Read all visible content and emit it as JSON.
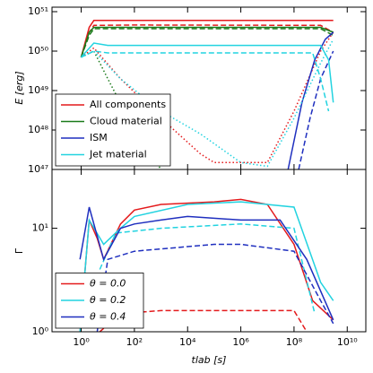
{
  "chart_data": [
    {
      "type": "line",
      "ylabel": "E [erg]",
      "log_x": true,
      "log_y": true,
      "xlim": [
        0.08,
        50000000000
      ],
      "ylim": [
        1e+47,
        1.3e+51
      ],
      "yticks": [
        {
          "value": 1e+47,
          "label": "10⁴⁷"
        },
        {
          "value": 1e+48,
          "label": "10⁴⁸"
        },
        {
          "value": 1e+49,
          "label": "10⁴⁹"
        },
        {
          "value": 1e+50,
          "label": "10⁵⁰"
        },
        {
          "value": 1e+51,
          "label": "10⁵¹"
        }
      ],
      "legend": "lower left",
      "series": [
        {
          "name": "All components",
          "color": "#e41a1c",
          "lines": [
            {
              "style": "solid",
              "x": [
                1,
                2,
                3,
                1000000000,
                3000000000
              ],
              "values": [
                7e+49,
                4e+50,
                6e+50,
                6e+50,
                6e+50
              ]
            },
            {
              "style": "dashed",
              "x": [
                1,
                2,
                3,
                100,
                1000000000,
                3000000000
              ],
              "values": [
                7e+49,
                3e+50,
                4.5e+50,
                4.6e+50,
                4.5e+50,
                3e+50
              ]
            },
            {
              "style": "dotted",
              "x": [
                1,
                3,
                30,
                1000,
                30000,
                100000,
                10000000,
                100000000,
                1000000000,
                3000000000
              ],
              "values": [
                7e+49,
                1.2e+50,
                2e+49,
                2e+48,
                2.5e+47,
                1.5e+47,
                1.5e+47,
                3e+48,
                1e+50,
                3e+50
              ]
            }
          ]
        },
        {
          "name": "Cloud material",
          "color": "#1a7a1a",
          "lines": [
            {
              "style": "solid",
              "x": [
                1,
                2,
                3,
                1000000000,
                3000000000
              ],
              "values": [
                7e+49,
                3e+50,
                4e+50,
                4e+50,
                3e+50
              ]
            },
            {
              "style": "dashed",
              "x": [
                1,
                2,
                3,
                1000000000,
                3000000000
              ],
              "values": [
                7e+49,
                2.5e+50,
                3.7e+50,
                3.7e+50,
                2.5e+50
              ]
            },
            {
              "style": "dotted",
              "x": [
                1,
                3,
                10,
                100,
                1000,
                3000
              ],
              "values": [
                7e+49,
                1e+50,
                2e+49,
                1e+48,
                1e+47,
                5e+46
              ]
            }
          ]
        },
        {
          "name": "ISM",
          "color": "#1f2fbf",
          "lines": [
            {
              "style": "solid",
              "x": [
                60000000,
                200000000,
                600000000,
                1500000000,
                3000000000
              ],
              "values": [
                1e+47,
                5e+48,
                6e+49,
                2e+50,
                3e+50
              ]
            },
            {
              "style": "dashed",
              "x": [
                150000000,
                400000000,
                1000000000,
                3000000000
              ],
              "values": [
                1e+47,
                2e+48,
                2e+49,
                1e+50
              ]
            }
          ]
        },
        {
          "name": "Jet material",
          "color": "#22d3e0",
          "lines": [
            {
              "style": "solid",
              "x": [
                1,
                3,
                10,
                1000000000,
                2000000000,
                3000000000
              ],
              "values": [
                7e+49,
                1.6e+50,
                1.4e+50,
                1.4e+50,
                6e+49,
                5e+48
              ]
            },
            {
              "style": "dashed",
              "x": [
                1,
                3,
                10,
                500000000,
                1000000000,
                2000000000
              ],
              "values": [
                7e+49,
                1e+50,
                9e+49,
                9e+49,
                2e+49,
                3e+48
              ]
            },
            {
              "style": "dotted",
              "x": [
                1,
                3,
                30,
                1000,
                30000,
                1000000,
                10000000,
                100000000,
                1000000000,
                3000000000
              ],
              "values": [
                7e+49,
                1e+50,
                2e+49,
                3e+48,
                8e+47,
                1.5e+47,
                1.2e+47,
                2e+48,
                5e+49,
                2e+50
              ]
            }
          ]
        }
      ]
    },
    {
      "type": "line",
      "ylabel": "Γ",
      "xlabel": "tlab [s]",
      "log_x": true,
      "log_y": true,
      "xlim": [
        0.08,
        50000000000
      ],
      "ylim": [
        1,
        37
      ],
      "xticks": [
        {
          "value": 1,
          "label": "10⁰"
        },
        {
          "value": 100,
          "label": "10²"
        },
        {
          "value": 10000,
          "label": "10⁴"
        },
        {
          "value": 1000000,
          "label": "10⁶"
        },
        {
          "value": 100000000,
          "label": "10⁸"
        },
        {
          "value": 10000000000,
          "label": "10¹⁰"
        }
      ],
      "yticks": [
        {
          "value": 1,
          "label": "10⁰"
        },
        {
          "value": 10,
          "label": "10¹"
        }
      ],
      "legend": "lower left",
      "series": [
        {
          "name": "θ = 0.0",
          "color": "#e41a1c",
          "lines": [
            {
              "style": "solid",
              "x": [
                0.9,
                2,
                4,
                7,
                30,
                100,
                1000,
                100000,
                1000000,
                10000000,
                100000000,
                500000000,
                3000000000
              ],
              "values": [
                1,
                12,
                8,
                5,
                11,
                15,
                17,
                18,
                19,
                17,
                7,
                2,
                1.3
              ]
            },
            {
              "style": "dashed",
              "x": [
                5,
                30,
                1000,
                100000000,
                300000000
              ],
              "values": [
                1,
                1.5,
                1.6,
                1.6,
                1
              ]
            }
          ]
        },
        {
          "name": "θ = 0.2",
          "color": "#22d3e0",
          "lines": [
            {
              "style": "solid",
              "x": [
                0.9,
                2,
                7,
                30,
                100,
                10000,
                1000000,
                100000000,
                1000000000,
                3000000000
              ],
              "values": [
                1,
                12,
                7,
                10,
                13,
                17,
                18,
                16,
                3,
                2
              ]
            },
            {
              "style": "dashed",
              "x": [
                5,
                20,
                1000,
                1000000,
                100000000,
                600000000
              ],
              "values": [
                4,
                9,
                10,
                11,
                10,
                1.5
              ]
            }
          ]
        },
        {
          "name": "θ = 0.4",
          "color": "#1f2fbf",
          "lines": [
            {
              "style": "solid",
              "x": [
                0.9,
                2,
                7,
                30,
                100,
                1000,
                10000,
                1000000,
                30000000,
                300000000,
                3000000000
              ],
              "values": [
                5,
                16,
                5,
                10,
                11,
                12,
                13,
                12,
                12,
                5,
                1.3
              ]
            },
            {
              "style": "dashed",
              "x": [
                4,
                10,
                100,
                100000,
                1000000,
                100000000,
                1000000000,
                3000000000
              ],
              "values": [
                1,
                5,
                6,
                7,
                7,
                6,
                2,
                1.2
              ]
            }
          ]
        }
      ]
    }
  ]
}
